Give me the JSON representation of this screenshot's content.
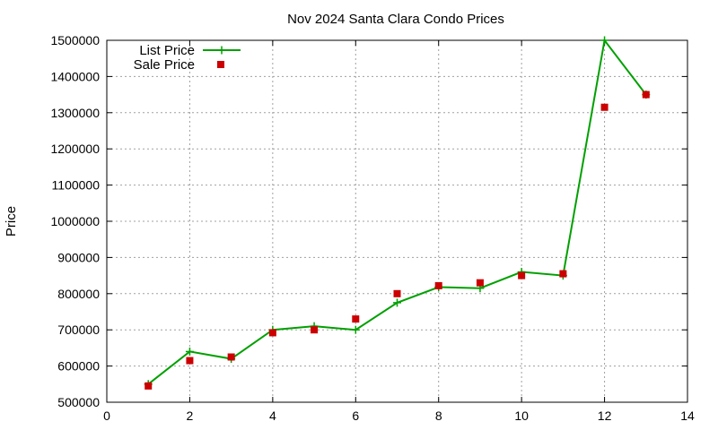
{
  "chart_data": {
    "type": "line",
    "title": "Nov 2024 Santa Clara Condo Prices",
    "xlabel": "",
    "ylabel": "Price",
    "xlim": [
      0,
      14
    ],
    "ylim": [
      500000,
      1500000
    ],
    "x_ticks": [
      0,
      2,
      4,
      6,
      8,
      10,
      12,
      14
    ],
    "y_ticks": [
      500000,
      600000,
      700000,
      800000,
      900000,
      1000000,
      1100000,
      1200000,
      1300000,
      1400000,
      1500000
    ],
    "grid": true,
    "legend_position": "top-left",
    "series": [
      {
        "name": "List Price",
        "style": "line-plus",
        "color": "#00a000",
        "x": [
          1,
          2,
          3,
          4,
          5,
          6,
          7,
          8,
          9,
          10,
          11,
          12,
          13
        ],
        "y": [
          550000,
          640000,
          620000,
          700000,
          710000,
          700000,
          775000,
          818000,
          815000,
          860000,
          850000,
          1500000,
          1350000
        ]
      },
      {
        "name": "Sale Price",
        "style": "square-points",
        "color": "#cc0000",
        "x": [
          1,
          2,
          3,
          4,
          5,
          6,
          7,
          8,
          9,
          10,
          11,
          12,
          13
        ],
        "y": [
          545000,
          615000,
          625000,
          692000,
          700000,
          730000,
          800000,
          822000,
          830000,
          850000,
          855000,
          1315000,
          1350000
        ]
      }
    ]
  }
}
